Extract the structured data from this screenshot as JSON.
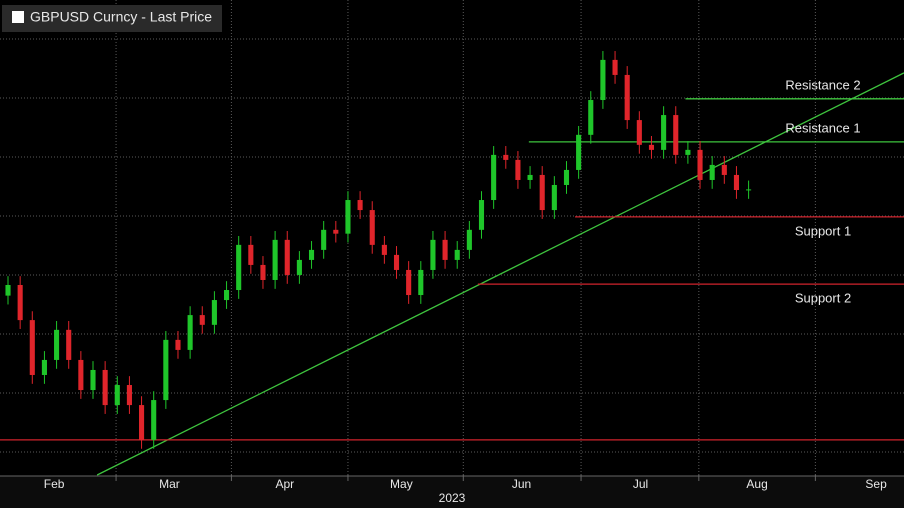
{
  "chart_data": {
    "type": "candlestick",
    "title": "GBPUSD Curncy - Last Price",
    "x_axis_label": "2023",
    "x": [
      0,
      1,
      2,
      3,
      4,
      5,
      6,
      7,
      8,
      9,
      10,
      11,
      12,
      13,
      14,
      15,
      16,
      17,
      18,
      19,
      20,
      21,
      22,
      23,
      24,
      25,
      26,
      27,
      28,
      29,
      30,
      31,
      32,
      33,
      34,
      35,
      36,
      37,
      38,
      39,
      40,
      41,
      42,
      43,
      44,
      45,
      46,
      47,
      48,
      49,
      50,
      51,
      52,
      53,
      54,
      55,
      56,
      57,
      58,
      59,
      60,
      61
    ],
    "open": [
      1.233,
      1.2366,
      1.2247,
      1.2061,
      1.2112,
      1.2214,
      1.2112,
      1.201,
      1.2078,
      1.1959,
      1.2027,
      1.1959,
      1.1841,
      1.1976,
      1.218,
      1.2146,
      1.2264,
      1.2231,
      1.2315,
      1.2349,
      1.2502,
      1.2434,
      1.2383,
      1.2519,
      1.24,
      1.2451,
      1.2485,
      1.2553,
      1.254,
      1.2654,
      1.262,
      1.2502,
      1.2468,
      1.2417,
      1.2332,
      1.2417,
      1.2519,
      1.2451,
      1.2485,
      1.2553,
      1.2654,
      1.2807,
      1.279,
      1.2722,
      1.2739,
      1.262,
      1.2705,
      1.2756,
      1.2875,
      1.2993,
      1.3129,
      1.3078,
      1.2925,
      1.2841,
      1.2824,
      1.2942,
      1.2807,
      1.2824,
      1.2722,
      1.2773,
      1.2739,
      1.2688
    ],
    "high": [
      1.2396,
      1.2396,
      1.2277,
      1.2142,
      1.2244,
      1.2244,
      1.2142,
      1.2108,
      1.2108,
      1.2057,
      1.2057,
      1.1989,
      1.2006,
      1.221,
      1.221,
      1.2294,
      1.2294,
      1.2345,
      1.2379,
      1.2532,
      1.2532,
      1.2464,
      1.2549,
      1.2549,
      1.2481,
      1.2515,
      1.2583,
      1.2583,
      1.2684,
      1.2684,
      1.265,
      1.2532,
      1.2498,
      1.2447,
      1.2447,
      1.2549,
      1.2549,
      1.2515,
      1.2583,
      1.2684,
      1.2837,
      1.2837,
      1.282,
      1.2769,
      1.2769,
      1.2735,
      1.2786,
      1.2905,
      1.3023,
      1.3159,
      1.3159,
      1.3108,
      1.2955,
      1.2871,
      1.2972,
      1.2972,
      1.2854,
      1.2854,
      1.2803,
      1.2803,
      1.2769,
      1.272
    ],
    "low": [
      1.23,
      1.2217,
      1.2031,
      1.2031,
      1.2082,
      1.2082,
      1.198,
      1.198,
      1.1929,
      1.1929,
      1.1929,
      1.1811,
      1.1811,
      1.1946,
      1.2116,
      1.2116,
      1.2201,
      1.2201,
      1.2285,
      1.2319,
      1.2404,
      1.2353,
      1.2353,
      1.237,
      1.237,
      1.2421,
      1.2455,
      1.251,
      1.251,
      1.259,
      1.2472,
      1.2438,
      1.2387,
      1.2302,
      1.2302,
      1.2387,
      1.2421,
      1.2421,
      1.2455,
      1.2523,
      1.2624,
      1.276,
      1.2692,
      1.2692,
      1.259,
      1.259,
      1.2675,
      1.2726,
      1.2845,
      1.2963,
      1.3048,
      1.2895,
      1.2811,
      1.2794,
      1.2794,
      1.2777,
      1.2777,
      1.2692,
      1.2692,
      1.2709,
      1.2658,
      1.2658
    ],
    "close": [
      1.2366,
      1.2247,
      1.2061,
      1.2112,
      1.2214,
      1.2112,
      1.201,
      1.2078,
      1.1959,
      1.2027,
      1.1959,
      1.1841,
      1.1976,
      1.218,
      1.2146,
      1.2264,
      1.2231,
      1.2315,
      1.2349,
      1.2502,
      1.2434,
      1.2383,
      1.2519,
      1.24,
      1.2451,
      1.2485,
      1.2553,
      1.254,
      1.2654,
      1.262,
      1.2502,
      1.2468,
      1.2417,
      1.2332,
      1.2417,
      1.2519,
      1.2451,
      1.2485,
      1.2553,
      1.2654,
      1.2807,
      1.279,
      1.2722,
      1.2739,
      1.262,
      1.2705,
      1.2756,
      1.2875,
      1.2993,
      1.3129,
      1.3078,
      1.2925,
      1.2841,
      1.2824,
      1.2942,
      1.2807,
      1.2824,
      1.2722,
      1.2773,
      1.2739,
      1.2688,
      1.269
    ],
    "up_color": "#1fc62a",
    "down_color": "#e0252b",
    "xlim": [
      -0.66,
      73.8
    ],
    "ylim": [
      1.1722,
      1.3332
    ],
    "ygrid": [
      1.18,
      1.2,
      1.22,
      1.24,
      1.26,
      1.28,
      1.3,
      1.32
    ],
    "xgrid": [
      8.9,
      18.4,
      28.0,
      37.5,
      47.2,
      56.9,
      66.5
    ],
    "xticks": [
      {
        "value": 3.8,
        "label": "Feb"
      },
      {
        "value": 13.3,
        "label": "Mar"
      },
      {
        "value": 22.8,
        "label": "Apr"
      },
      {
        "value": 32.4,
        "label": "May"
      },
      {
        "value": 42.3,
        "label": "Jun"
      },
      {
        "value": 52.1,
        "label": "Jul"
      },
      {
        "value": 61.7,
        "label": "Aug"
      },
      {
        "value": 71.5,
        "label": "Sep"
      }
    ],
    "trendline": {
      "x": [
        7.34,
        73.8
      ],
      "y": [
        1.1722,
        1.3085
      ],
      "color": "#3ec43e"
    },
    "levels": [
      {
        "name": "Resistance 2",
        "value": 1.2997,
        "start": 55.8,
        "color": "#3ec43e",
        "label_position": "above"
      },
      {
        "name": "Resistance 1",
        "value": 1.2851,
        "start": 42.9,
        "color": "#3ec43e",
        "label_position": "above"
      },
      {
        "name": "Support 1",
        "value": 1.2597,
        "start": 46.7,
        "color": "#d0232c",
        "label_position": "below"
      },
      {
        "name": "Support 2",
        "value": 1.2369,
        "start": 38.7,
        "color": "#d0232c",
        "label_position": "below"
      },
      {
        "value": 1.1841,
        "start": -0.66,
        "color": "#d0232c"
      }
    ]
  }
}
